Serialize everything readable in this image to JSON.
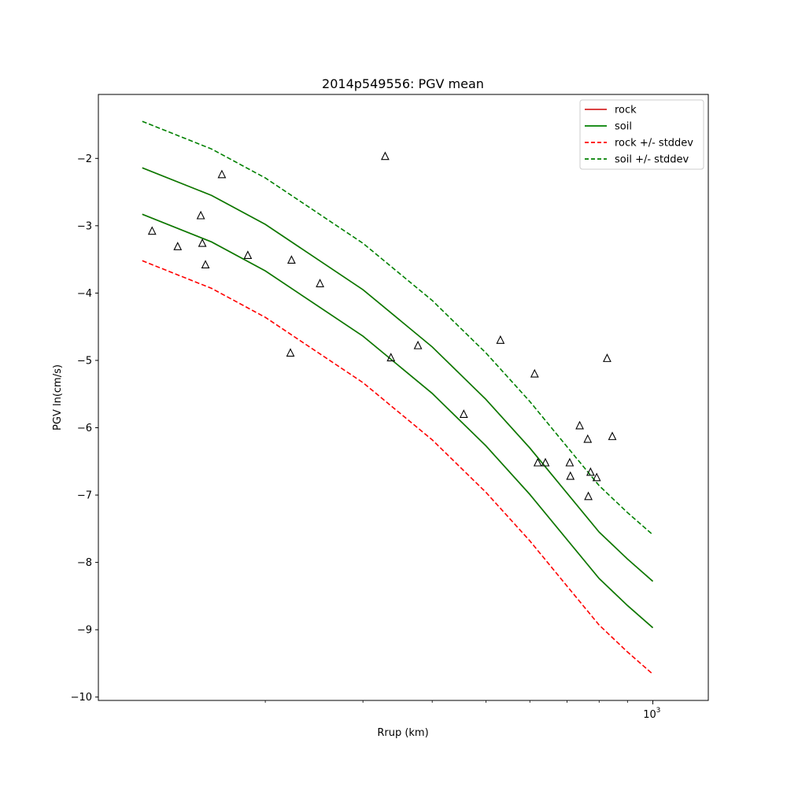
{
  "chart_data": {
    "type": "line",
    "title": "2014p549556: PGV mean",
    "xlabel": "Rrup (km)",
    "ylabel": "PGV ln(cm/s)",
    "x_scale": "log",
    "x_major_ticks": [
      1000
    ],
    "x_tick_labels": [
      {
        "mantissa": "10",
        "exponent": "3"
      }
    ],
    "ylim": [
      -10.05,
      -1.05
    ],
    "y_ticks": [
      -10,
      -9,
      -8,
      -7,
      -6,
      -5,
      -4,
      -3,
      -2
    ],
    "y_tick_labels": [
      "−10",
      "−9",
      "−8",
      "−7",
      "−6",
      "−5",
      "−4",
      "−3",
      "−2"
    ],
    "x_domain_log10": [
      2.0,
      3.1
    ],
    "x_minor_ticks": [
      200,
      300,
      400,
      500,
      600,
      700,
      800,
      900
    ],
    "grid": false,
    "legend_position": "top-right",
    "legend": [
      {
        "label": "rock",
        "color": "#d62728",
        "style": "solid"
      },
      {
        "label": "soil",
        "color": "#008000",
        "style": "solid"
      },
      {
        "label": "rock +/- stddev",
        "color": "#ff0000",
        "style": "dashed"
      },
      {
        "label": "soil +/- stddev",
        "color": "#008000",
        "style": "dashed"
      }
    ],
    "x": [
      120,
      160,
      200,
      300,
      400,
      500,
      600,
      700,
      800,
      900,
      1000
    ],
    "series": [
      {
        "name": "rock",
        "color": "#d62728",
        "style": "solid",
        "values": [
          -2.14,
          -2.55,
          -2.98,
          -3.95,
          -4.8,
          -5.58,
          -6.3,
          -6.97,
          -7.55,
          -7.95,
          -8.28
        ]
      },
      {
        "name": "soil",
        "color": "#008000",
        "style": "solid",
        "values": [
          -2.14,
          -2.55,
          -2.98,
          -3.95,
          -4.8,
          -5.58,
          -6.3,
          -6.97,
          -7.55,
          -7.95,
          -8.28
        ]
      },
      {
        "name": "soil",
        "color": "#d62728",
        "style": "solid",
        "values": [
          -2.83,
          -3.24,
          -3.67,
          -4.64,
          -5.49,
          -6.27,
          -6.99,
          -7.66,
          -8.24,
          -8.64,
          -8.97
        ]
      },
      {
        "name": "soil",
        "color": "#008000",
        "style": "solid",
        "values": [
          -2.83,
          -3.24,
          -3.67,
          -4.64,
          -5.49,
          -6.27,
          -6.99,
          -7.66,
          -8.24,
          -8.64,
          -8.97
        ]
      },
      {
        "name": "rock +/- stddev",
        "color": "#ff0000",
        "style": "dashed",
        "values": [
          -3.52,
          -3.93,
          -4.36,
          -5.33,
          -6.18,
          -6.96,
          -7.68,
          -8.35,
          -8.93,
          -9.33,
          -9.66
        ]
      },
      {
        "name": "soil +/- stddev",
        "color": "#008000",
        "style": "dashed",
        "values": [
          -1.45,
          -1.86,
          -2.29,
          -3.26,
          -4.11,
          -4.89,
          -5.61,
          -6.28,
          -6.86,
          -7.26,
          -7.59
        ]
      }
    ],
    "observations": {
      "marker": "triangle",
      "color": "#000000",
      "x": [
        125,
        139,
        153,
        154,
        156,
        167,
        186,
        222,
        223,
        251,
        329,
        337,
        377,
        456,
        531,
        612,
        620,
        640,
        708,
        710,
        738,
        763,
        765,
        772,
        792,
        827,
        845
      ],
      "y": [
        -3.08,
        -3.31,
        -2.85,
        -3.26,
        -3.58,
        -2.24,
        -3.44,
        -4.89,
        -3.51,
        -3.86,
        -1.97,
        -4.96,
        -4.78,
        -5.8,
        -4.7,
        -5.2,
        -6.52,
        -6.52,
        -6.52,
        -6.72,
        -5.97,
        -6.17,
        -7.02,
        -6.66,
        -6.74,
        -4.97,
        -6.13
      ]
    }
  }
}
